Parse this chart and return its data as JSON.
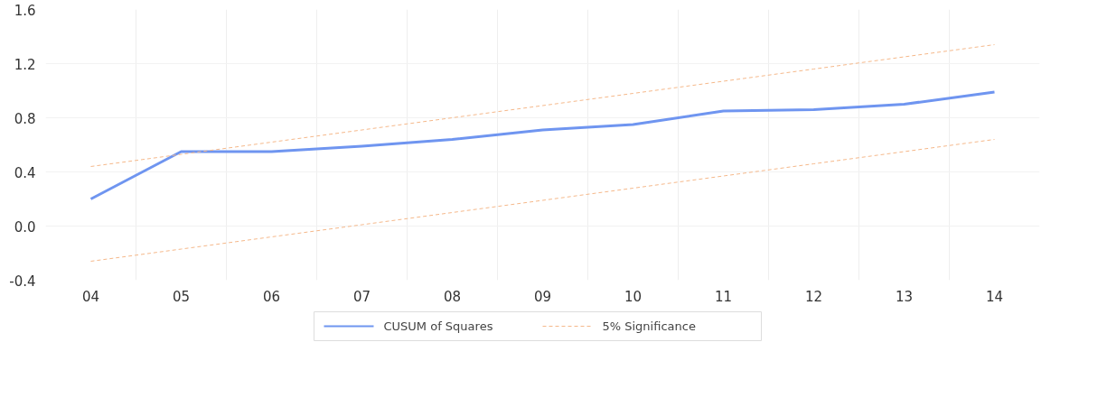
{
  "chart_data": {
    "type": "line",
    "categories": [
      "04",
      "05",
      "06",
      "07",
      "08",
      "09",
      "10",
      "11",
      "12",
      "13",
      "14"
    ],
    "ylim": [
      -0.4,
      1.6
    ],
    "yticks": [
      {
        "value": -0.4,
        "label": "-0.4"
      },
      {
        "value": 0,
        "label": "0.0"
      },
      {
        "value": 0.4,
        "label": "0.4"
      },
      {
        "value": 0.8,
        "label": "0.8"
      },
      {
        "value": 1.2,
        "label": "1.2"
      },
      {
        "value": 1.6,
        "label": "1.6"
      }
    ],
    "grid": true,
    "legend": "bottom",
    "series": [
      {
        "name": "CUSUM of Squares",
        "color": "#6f95f0",
        "line_style": "solid",
        "values": [
          0.2,
          0.55,
          0.55,
          0.59,
          0.64,
          0.71,
          0.75,
          0.85,
          0.86,
          0.9,
          0.99
        ]
      },
      {
        "name": "5% Significance",
        "color": "#f5b88a",
        "line_style": "dashed",
        "values": [
          0.44,
          0.53,
          0.62,
          0.71,
          0.8,
          0.89,
          0.98,
          1.07,
          1.16,
          1.25,
          1.34
        ]
      },
      {
        "color": "#f5b88a",
        "line_style": "dashed",
        "values": [
          -0.26,
          -0.17,
          -0.08,
          0.01,
          0.1,
          0.19,
          0.28,
          0.37,
          0.46,
          0.55,
          0.64
        ]
      }
    ]
  }
}
